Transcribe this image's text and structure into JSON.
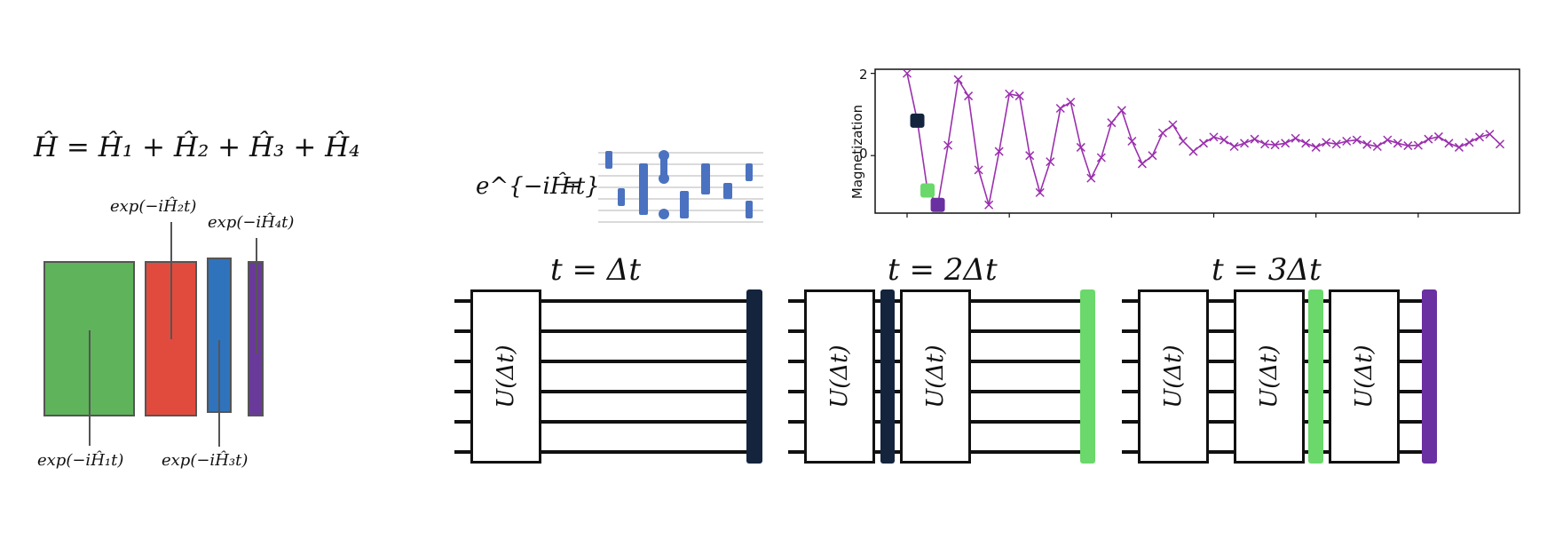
{
  "hamiltonian": {
    "sum_equation": "Ĥ = Ĥ₁ + Ĥ₂ + Ĥ₃ + Ĥ₄",
    "labels": {
      "h1": "exp(−iĤ₁t)",
      "h2": "exp(−iĤ₂t)",
      "h3": "exp(−iĤ₃t)",
      "h4": "exp(−iĤ₄t)"
    },
    "colors": {
      "h1": "#5fb35a",
      "h2": "#e14b3e",
      "h3": "#2f73bd",
      "h4": "#6a3a9a"
    }
  },
  "decomposition": {
    "lhs": "e^{−iĤₗt}",
    "equals": "=",
    "gate_color": "#4a72c0"
  },
  "plot": {
    "ylabel": "Magnetization",
    "y_ticks": [
      "2",
      "0"
    ],
    "line_color": "#9b2fae",
    "markers": [
      {
        "index": 1,
        "color": "#14243d"
      },
      {
        "index": 2,
        "color": "#6ad86a"
      },
      {
        "index": 3,
        "color": "#6a2fa0"
      }
    ]
  },
  "chart_data": {
    "type": "line",
    "ylabel": "Magnetization",
    "ylim": [
      -1.4,
      2.1
    ],
    "y_ticks": [
      0,
      2
    ],
    "series": [
      {
        "values": [
          2.0,
          0.85,
          -0.85,
          -1.2,
          0.25,
          1.85,
          1.45,
          -0.35,
          -1.2,
          0.1,
          1.5,
          1.45,
          0.0,
          -0.9,
          -0.15,
          1.15,
          1.3,
          0.2,
          -0.55,
          -0.05,
          0.8,
          1.1,
          0.35,
          -0.2,
          0.0,
          0.55,
          0.75,
          0.35,
          0.1,
          0.3,
          0.45,
          0.38,
          0.22,
          0.3,
          0.4,
          0.28,
          0.26,
          0.3,
          0.42,
          0.3,
          0.2,
          0.32,
          0.28,
          0.35,
          0.38,
          0.27,
          0.22,
          0.38,
          0.3,
          0.24,
          0.25,
          0.4,
          0.46,
          0.3,
          0.2,
          0.32,
          0.45,
          0.52,
          0.28
        ]
      }
    ]
  },
  "circuits": [
    {
      "time_label": "t = Δt",
      "gate_label": "U(Δt)",
      "measure_color": "#14243d"
    },
    {
      "time_label": "t = 2Δt",
      "gate_label": "U(Δt)",
      "measure_color": "#6ad86a"
    },
    {
      "time_label": "t = 3Δt",
      "gate_label": "U(Δt)",
      "measure_color": "#6a2fa0"
    }
  ]
}
